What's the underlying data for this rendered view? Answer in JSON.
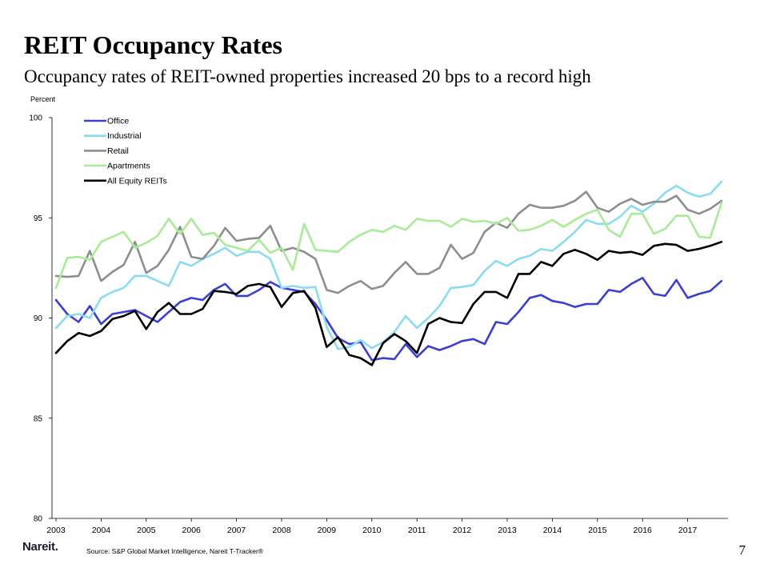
{
  "slide": {
    "title": "REIT Occupancy Rates",
    "subtitle": "Occupancy rates of REIT-owned properties increased 20 bps to a record high",
    "brand": "Nareit.",
    "source": "Source: S&P Global Market Intelligence, Nareit T-Tracker®",
    "page_number": "7"
  },
  "chart_data": {
    "type": "line",
    "ylabel": "Percent",
    "xlabel": "",
    "ylim": [
      80,
      100
    ],
    "yticks": [
      80,
      85,
      90,
      95,
      100
    ],
    "xlim": [
      2003,
      2018
    ],
    "xticks": [
      2003,
      2004,
      2005,
      2006,
      2007,
      2008,
      2009,
      2010,
      2011,
      2012,
      2013,
      2014,
      2015,
      2016,
      2017
    ],
    "grid": false,
    "legend_position": "top-left",
    "x": [
      2003.0,
      2003.25,
      2003.5,
      2003.75,
      2004.0,
      2004.25,
      2004.5,
      2004.75,
      2005.0,
      2005.25,
      2005.5,
      2005.75,
      2006.0,
      2006.25,
      2006.5,
      2006.75,
      2007.0,
      2007.25,
      2007.5,
      2007.75,
      2008.0,
      2008.25,
      2008.5,
      2008.75,
      2009.0,
      2009.25,
      2009.5,
      2009.75,
      2010.0,
      2010.25,
      2010.5,
      2010.75,
      2011.0,
      2011.25,
      2011.5,
      2011.75,
      2012.0,
      2012.25,
      2012.5,
      2012.75,
      2013.0,
      2013.25,
      2013.5,
      2013.75,
      2014.0,
      2014.25,
      2014.5,
      2014.75,
      2015.0,
      2015.25,
      2015.5,
      2015.75,
      2016.0,
      2016.25,
      2016.5,
      2016.75,
      2017.0,
      2017.25,
      2017.5,
      2017.75
    ],
    "series": [
      {
        "name": "Office",
        "color": "#3c3fd6",
        "values": [
          90.9,
          90.2,
          89.8,
          90.6,
          89.7,
          90.2,
          90.3,
          90.4,
          90.1,
          89.8,
          90.3,
          90.8,
          91.0,
          90.9,
          91.4,
          91.7,
          91.1,
          91.1,
          91.4,
          91.8,
          91.5,
          91.4,
          91.3,
          90.7,
          89.9,
          89.0,
          88.7,
          88.8,
          87.9,
          88.0,
          87.95,
          88.7,
          88.05,
          88.6,
          88.4,
          88.6,
          88.85,
          88.95,
          88.7,
          89.8,
          89.7,
          90.3,
          91.0,
          91.15,
          90.85,
          90.75,
          90.55,
          90.7,
          90.7,
          91.4,
          91.3,
          91.7,
          92.0,
          91.2,
          91.1,
          91.9,
          91.0,
          91.2,
          91.35,
          91.85
        ]
      },
      {
        "name": "Industrial",
        "color": "#8adcf0",
        "values": [
          89.5,
          90.1,
          90.2,
          90.0,
          91.0,
          91.3,
          91.5,
          92.1,
          92.1,
          91.85,
          91.6,
          92.8,
          92.6,
          92.95,
          93.2,
          93.5,
          93.1,
          93.3,
          93.3,
          92.95,
          91.5,
          91.6,
          91.5,
          91.55,
          89.55,
          88.45,
          88.55,
          88.9,
          88.5,
          88.8,
          89.3,
          90.1,
          89.5,
          90.0,
          90.6,
          91.5,
          91.55,
          91.65,
          92.35,
          92.85,
          92.6,
          92.95,
          93.1,
          93.45,
          93.35,
          93.8,
          94.3,
          94.9,
          94.7,
          94.7,
          95.05,
          95.6,
          95.3,
          95.7,
          96.25,
          96.6,
          96.25,
          96.05,
          96.2,
          96.8
        ]
      },
      {
        "name": "Retail",
        "color": "#8e8e8e",
        "values": [
          92.1,
          92.05,
          92.1,
          93.35,
          91.85,
          92.3,
          92.65,
          93.8,
          92.25,
          92.6,
          93.4,
          94.55,
          93.05,
          92.95,
          93.6,
          94.5,
          93.85,
          93.95,
          94.0,
          94.6,
          93.35,
          93.5,
          93.3,
          92.95,
          91.4,
          91.25,
          91.6,
          91.85,
          91.45,
          91.6,
          92.25,
          92.8,
          92.2,
          92.2,
          92.5,
          93.65,
          92.95,
          93.25,
          94.3,
          94.75,
          94.5,
          95.2,
          95.65,
          95.5,
          95.5,
          95.6,
          95.85,
          96.3,
          95.5,
          95.3,
          95.7,
          95.95,
          95.65,
          95.8,
          95.8,
          96.1,
          95.4,
          95.2,
          95.45,
          95.85
        ]
      },
      {
        "name": "Apartments",
        "color": "#a8ec96",
        "values": [
          91.5,
          93.0,
          93.05,
          92.9,
          93.8,
          94.05,
          94.3,
          93.5,
          93.75,
          94.1,
          94.95,
          94.2,
          94.95,
          94.15,
          94.25,
          93.65,
          93.5,
          93.35,
          93.9,
          93.25,
          93.5,
          92.4,
          94.7,
          93.4,
          93.35,
          93.3,
          93.8,
          94.15,
          94.4,
          94.3,
          94.6,
          94.4,
          94.95,
          94.85,
          94.85,
          94.55,
          94.95,
          94.8,
          94.85,
          94.7,
          95.0,
          94.35,
          94.4,
          94.6,
          94.9,
          94.55,
          94.9,
          95.2,
          95.4,
          94.4,
          94.05,
          95.2,
          95.2,
          94.2,
          94.45,
          95.1,
          95.1,
          94.05,
          94.0,
          95.75
        ]
      },
      {
        "name": "All Equity REITs",
        "color": "#000000",
        "values": [
          88.25,
          88.85,
          89.25,
          89.1,
          89.35,
          89.95,
          90.1,
          90.35,
          89.45,
          90.3,
          90.75,
          90.2,
          90.2,
          90.45,
          91.35,
          91.3,
          91.2,
          91.6,
          91.7,
          91.55,
          90.55,
          91.25,
          91.35,
          90.5,
          88.55,
          89.05,
          88.15,
          88.0,
          87.65,
          88.75,
          89.2,
          88.85,
          88.25,
          89.7,
          90.0,
          89.8,
          89.75,
          90.7,
          91.3,
          91.3,
          91.0,
          92.2,
          92.2,
          92.8,
          92.6,
          93.2,
          93.4,
          93.2,
          92.9,
          93.35,
          93.25,
          93.3,
          93.15,
          93.6,
          93.7,
          93.65,
          93.35,
          93.45,
          93.6,
          93.8
        ]
      }
    ]
  }
}
